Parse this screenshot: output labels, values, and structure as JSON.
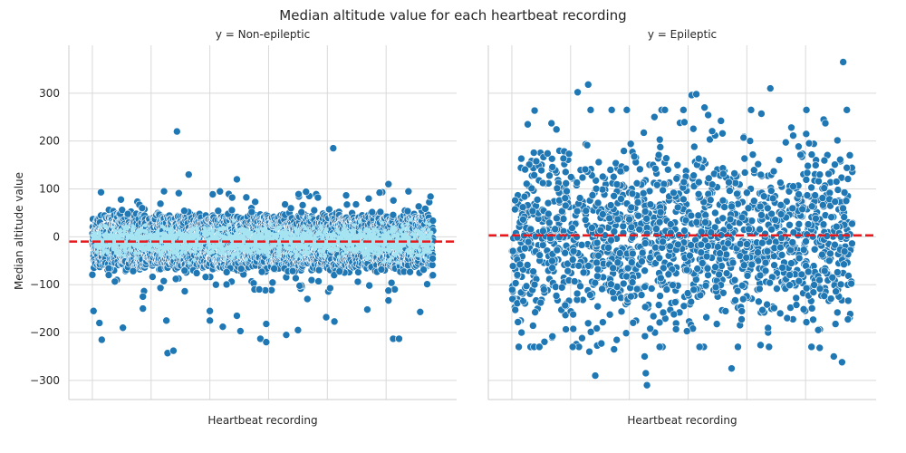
{
  "chart_data": {
    "type": "scatter",
    "title": "Median altitude value for each heartbeat recording",
    "ylabel": "Median altitude value",
    "ylim": [
      -340,
      400
    ],
    "yticks": [
      300,
      200,
      100,
      0,
      -100,
      -200,
      -300
    ],
    "grid": true,
    "reference_line": {
      "style": "dashed",
      "color": "#e8191c"
    },
    "panels": [
      {
        "title": "y = Non-epileptic",
        "xlabel": "Heartbeat recording",
        "xlim": [
          -200,
          3100
        ],
        "x_range": [
          0,
          2900
        ],
        "mean": -10,
        "marker_color": "#1f77b4",
        "band_color": "#a6e4f2",
        "density": "dense",
        "bulk_spread": 55,
        "outliers": [
          {
            "x": 10,
            "y": -155
          },
          {
            "x": 60,
            "y": -180
          },
          {
            "x": 80,
            "y": -215
          },
          {
            "x": 260,
            "y": -190
          },
          {
            "x": 430,
            "y": -125
          },
          {
            "x": 430,
            "y": -150
          },
          {
            "x": 610,
            "y": 95
          },
          {
            "x": 630,
            "y": -175
          },
          {
            "x": 640,
            "y": -243
          },
          {
            "x": 690,
            "y": -238
          },
          {
            "x": 720,
            "y": 220
          },
          {
            "x": 820,
            "y": 130
          },
          {
            "x": 1000,
            "y": -155
          },
          {
            "x": 1000,
            "y": -175
          },
          {
            "x": 1110,
            "y": -188
          },
          {
            "x": 1230,
            "y": 120
          },
          {
            "x": 1230,
            "y": -165
          },
          {
            "x": 1260,
            "y": -197
          },
          {
            "x": 1380,
            "y": -110
          },
          {
            "x": 1420,
            "y": -110
          },
          {
            "x": 1430,
            "y": -213
          },
          {
            "x": 1480,
            "y": -220
          },
          {
            "x": 1480,
            "y": -182
          },
          {
            "x": 1650,
            "y": -205
          },
          {
            "x": 1750,
            "y": -195
          },
          {
            "x": 1830,
            "y": -130
          },
          {
            "x": 1990,
            "y": -168
          },
          {
            "x": 2050,
            "y": 185
          },
          {
            "x": 2060,
            "y": -177
          },
          {
            "x": 2340,
            "y": -152
          },
          {
            "x": 2520,
            "y": 110
          },
          {
            "x": 2520,
            "y": -133
          },
          {
            "x": 2560,
            "y": -213
          },
          {
            "x": 2610,
            "y": -213
          },
          {
            "x": 2790,
            "y": -157
          }
        ]
      },
      {
        "title": "y = Epileptic",
        "xlabel": "Heartbeat recording",
        "xlim": [
          -200,
          3100
        ],
        "x_range": [
          0,
          2900
        ],
        "mean": 3,
        "marker_color": "#1f77b4",
        "density": "sparse",
        "bulk_spread": 100,
        "outliers": [
          {
            "x": 560,
            "y": 302
          },
          {
            "x": 650,
            "y": 318
          },
          {
            "x": 660,
            "y": -240
          },
          {
            "x": 710,
            "y": -290
          },
          {
            "x": 870,
            "y": -235
          },
          {
            "x": 1130,
            "y": -250
          },
          {
            "x": 1140,
            "y": -285
          },
          {
            "x": 1150,
            "y": -310
          },
          {
            "x": 1530,
            "y": 296
          },
          {
            "x": 1570,
            "y": 298
          },
          {
            "x": 1640,
            "y": 270
          },
          {
            "x": 1870,
            "y": -275
          },
          {
            "x": 2200,
            "y": 310
          },
          {
            "x": 2820,
            "y": 365
          },
          {
            "x": 2740,
            "y": -250
          },
          {
            "x": 2810,
            "y": -262
          },
          {
            "x": 2620,
            "y": -232
          }
        ]
      }
    ]
  }
}
